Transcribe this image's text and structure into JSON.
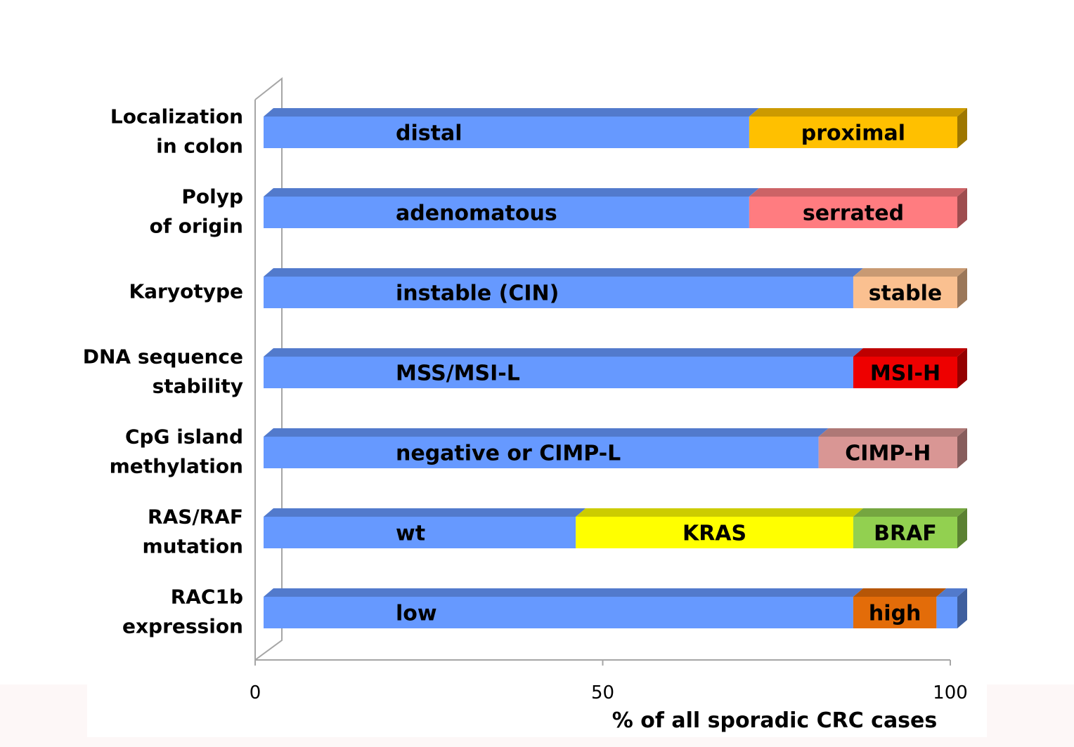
{
  "chart_data": {
    "type": "bar",
    "orientation": "horizontal",
    "stacked": true,
    "style": "3d",
    "xlabel": "%  of all sporadic CRC cases",
    "xlim": [
      0,
      100
    ],
    "xticks": [
      0,
      50,
      100
    ],
    "grid": false,
    "legend": "none",
    "categories": [
      {
        "label": [
          "Localization",
          "in colon"
        ],
        "segments": [
          {
            "name": "distal",
            "value": 70,
            "color": "#6699FF"
          },
          {
            "name": "proximal",
            "value": 30,
            "color": "#FFC000"
          }
        ]
      },
      {
        "label": [
          "Polyp",
          "of origin"
        ],
        "segments": [
          {
            "name": "adenomatous",
            "value": 70,
            "color": "#6699FF"
          },
          {
            "name": "serrated",
            "value": 30,
            "color": "#FF7C80"
          }
        ]
      },
      {
        "label": [
          "Karyotype"
        ],
        "segments": [
          {
            "name": "instable (CIN)",
            "value": 85,
            "color": "#6699FF"
          },
          {
            "name": "stable",
            "value": 15,
            "color": "#FAC090"
          }
        ]
      },
      {
        "label": [
          "DNA  sequence",
          "stability"
        ],
        "segments": [
          {
            "name": "MSS/MSI-L",
            "value": 85,
            "color": "#6699FF"
          },
          {
            "name": "MSI-H",
            "value": 15,
            "color": "#EE0000"
          }
        ]
      },
      {
        "label": [
          "CpG island",
          "methylation"
        ],
        "segments": [
          {
            "name": "negative or CIMP-L",
            "value": 80,
            "color": "#6699FF"
          },
          {
            "name": "CIMP-H",
            "value": 20,
            "color": "#D99694"
          }
        ]
      },
      {
        "label": [
          "RAS/RAF",
          "mutation"
        ],
        "segments": [
          {
            "name": "wt",
            "value": 45,
            "color": "#6699FF"
          },
          {
            "name": "KRAS",
            "value": 40,
            "color": "#FFFF00"
          },
          {
            "name": "BRAF",
            "value": 15,
            "color": "#92D050"
          }
        ]
      },
      {
        "label": [
          "RAC1b",
          "expression"
        ],
        "segments": [
          {
            "name": "low",
            "value": 85,
            "color": "#6699FF"
          },
          {
            "name": "high",
            "value": 12,
            "color": "#E36C09"
          },
          {
            "name": "",
            "value": 3,
            "color": "#6699FF"
          }
        ]
      }
    ]
  }
}
